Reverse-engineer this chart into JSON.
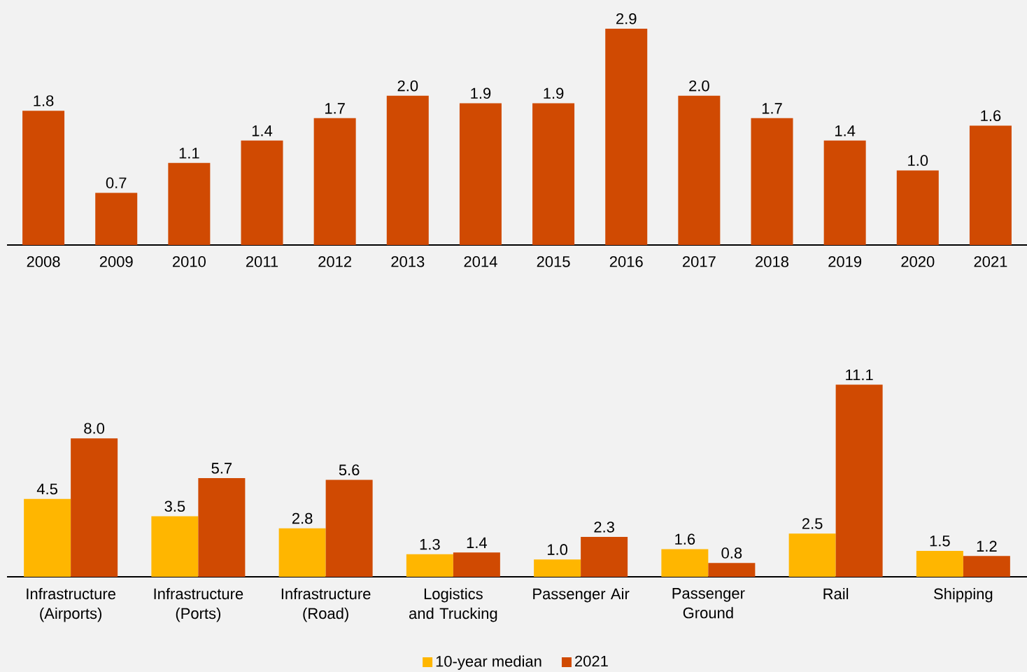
{
  "chart_data": [
    {
      "type": "bar",
      "categories": [
        "2008",
        "2009",
        "2010",
        "2011",
        "2012",
        "2013",
        "2014",
        "2015",
        "2016",
        "2017",
        "2018",
        "2019",
        "2020",
        "2021"
      ],
      "values": [
        1.8,
        0.7,
        1.1,
        1.4,
        1.7,
        2.0,
        1.9,
        1.9,
        2.9,
        2.0,
        1.7,
        1.4,
        1.0,
        1.6
      ],
      "color": "#d04a02",
      "value_labels": [
        "1.8",
        "0.7",
        "1.1",
        "1.4",
        "1.7",
        "2.0",
        "1.9",
        "1.9",
        "2.9",
        "2.0",
        "1.7",
        "1.4",
        "1.0",
        "1.6"
      ]
    },
    {
      "type": "bar",
      "categories": [
        "Infrastructure (Airports)",
        "Infrastructure (Ports)",
        "Infrastructure (Road)",
        "Logistics and Trucking",
        "Passenger Air",
        "Passenger Ground",
        "Rail",
        "Shipping"
      ],
      "series": [
        {
          "name": "10-year median",
          "color": "#ffb600",
          "values": [
            4.5,
            3.5,
            2.8,
            1.3,
            1.0,
            1.6,
            2.5,
            1.5
          ],
          "value_labels": [
            "4.5",
            "3.5",
            "2.8",
            "1.3",
            "1.0",
            "1.6",
            "2.5",
            "1.5"
          ]
        },
        {
          "name": "2021",
          "color": "#d04a02",
          "values": [
            8.0,
            5.7,
            5.6,
            1.4,
            2.3,
            0.8,
            11.1,
            1.2
          ],
          "value_labels": [
            "8.0",
            "5.7",
            "5.6",
            "1.4",
            "2.3",
            "0.8",
            "11.1",
            "1.2"
          ]
        }
      ],
      "legend": "bottom"
    }
  ]
}
